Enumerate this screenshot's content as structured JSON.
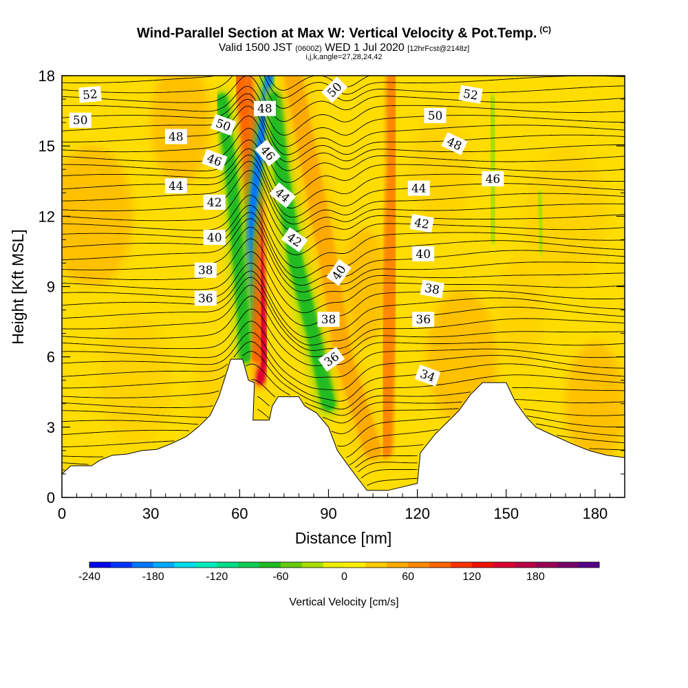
{
  "title": {
    "main": "Wind-Parallel Section at Max W: Vertical Velocity & Pot.Temp.",
    "copyright": "(C)",
    "valid_prefix": "Valid 1500 JST",
    "valid_utc": "(0600Z)",
    "valid_date": "WED 1 Jul 2020",
    "forecast": "[12hrFcst@2148z]",
    "indices": "i,j,k,angle=27,28,24,42"
  },
  "chart_data": {
    "type": "heatmap",
    "xlabel": "Distance [nm]",
    "ylabel": "Height [Kft MSL]",
    "xlim": [
      0,
      190
    ],
    "ylim": [
      0,
      18
    ],
    "x_ticks": [
      0,
      30,
      60,
      90,
      120,
      150,
      180
    ],
    "y_ticks": [
      0,
      3,
      6,
      9,
      12,
      15,
      18
    ],
    "colorbar": {
      "label": "Vertical Velocity [cm/s]",
      "range": [
        -240,
        240
      ],
      "tick_values": [
        -240,
        -180,
        -120,
        -60,
        0,
        60,
        120,
        180
      ],
      "colors": [
        "#0000ee",
        "#0033ff",
        "#0077ff",
        "#00aaff",
        "#00ddee",
        "#00eebb",
        "#00dd88",
        "#11cc55",
        "#22bb22",
        "#66cc11",
        "#aadd00",
        "#eeee00",
        "#ffee00",
        "#ffcc00",
        "#ffaa00",
        "#ff8800",
        "#ff6600",
        "#ff3300",
        "#ee1100",
        "#dd0033",
        "#bb0044",
        "#990055",
        "#770066",
        "#550088"
      ]
    },
    "terrain": [
      [
        0,
        1
      ],
      [
        3,
        1.35
      ],
      [
        10,
        1.35
      ],
      [
        13,
        1.6
      ],
      [
        17,
        1.8
      ],
      [
        22,
        1.85
      ],
      [
        27,
        2.0
      ],
      [
        32,
        2.05
      ],
      [
        37,
        2.3
      ],
      [
        42,
        2.6
      ],
      [
        46,
        3.0
      ],
      [
        50,
        3.5
      ],
      [
        53,
        4.3
      ],
      [
        55,
        5.1
      ],
      [
        57,
        5.9
      ],
      [
        61,
        5.9
      ],
      [
        63,
        5.0
      ],
      [
        65,
        4.9
      ],
      [
        64.5,
        3.3
      ],
      [
        70,
        3.3
      ],
      [
        71,
        3.9
      ],
      [
        73,
        4.3
      ],
      [
        80,
        4.3
      ],
      [
        82,
        3.9
      ],
      [
        86,
        3.6
      ],
      [
        90,
        3.0
      ],
      [
        93,
        2.0
      ],
      [
        97,
        1.3
      ],
      [
        103,
        0.3
      ],
      [
        110,
        0.3
      ],
      [
        120,
        0.6
      ],
      [
        121,
        1.9
      ],
      [
        126,
        2.7
      ],
      [
        134,
        3.7
      ],
      [
        138,
        4.4
      ],
      [
        142,
        4.9
      ],
      [
        150,
        4.9
      ],
      [
        153,
        4.1
      ],
      [
        157,
        3.4
      ],
      [
        160,
        3.0
      ],
      [
        165,
        2.7
      ],
      [
        172,
        2.3
      ],
      [
        178,
        2.0
      ],
      [
        184,
        1.8
      ],
      [
        190,
        1.7
      ],
      [
        190,
        0
      ],
      [
        0,
        0
      ]
    ],
    "velocity_features": [
      {
        "name": "updraft-strong",
        "value": 140,
        "path": [
          [
            62,
            18
          ],
          [
            64,
            16
          ],
          [
            66,
            12
          ],
          [
            67,
            9
          ],
          [
            68,
            6
          ],
          [
            67,
            5
          ]
        ],
        "width_nm": 3
      },
      {
        "name": "updraft-moderate",
        "value": 80,
        "path": [
          [
            60,
            18
          ],
          [
            62,
            16
          ],
          [
            64,
            12
          ],
          [
            66,
            9
          ],
          [
            66,
            6
          ]
        ],
        "width_nm": 4
      },
      {
        "name": "downdraft-strong",
        "value": -200,
        "path": [
          [
            70,
            18
          ],
          [
            66,
            14
          ],
          [
            63,
            11
          ],
          [
            62,
            8
          ],
          [
            61,
            6.2
          ]
        ],
        "width_nm": 2.5
      },
      {
        "name": "downdraft-moderate",
        "value": -80,
        "path": [
          [
            54,
            17
          ],
          [
            57,
            14
          ],
          [
            59,
            11
          ],
          [
            61,
            8
          ],
          [
            62,
            6
          ]
        ],
        "width_nm": 4
      },
      {
        "name": "downdraft-lee",
        "value": -70,
        "path": [
          [
            72,
            17
          ],
          [
            74,
            14
          ],
          [
            79,
            10
          ],
          [
            85,
            7
          ],
          [
            90,
            4
          ]
        ],
        "width_nm": 5
      },
      {
        "name": "updraft-lee",
        "value": 50,
        "path": [
          [
            78,
            18
          ],
          [
            84,
            14
          ],
          [
            90,
            10
          ],
          [
            95,
            6
          ],
          [
            105,
            2
          ]
        ],
        "width_nm": 6
      },
      {
        "name": "updraft-valley",
        "value": 60,
        "path": [
          [
            112,
            18
          ],
          [
            112,
            14
          ],
          [
            111,
            10
          ],
          [
            110,
            6
          ],
          [
            109,
            2
          ]
        ],
        "width_nm": 5
      },
      {
        "name": "downdraft-upper",
        "value": -40,
        "path": [
          [
            145,
            17
          ],
          [
            146,
            14
          ],
          [
            146,
            11
          ]
        ],
        "width_nm": 3
      },
      {
        "name": "downdraft-east",
        "value": -30,
        "path": [
          [
            161,
            13
          ],
          [
            162,
            11.5
          ],
          [
            162,
            10.5
          ]
        ],
        "width_nm": 2
      }
    ],
    "theta_labels": [
      {
        "value": "52",
        "x": 9.5,
        "y": 17.2,
        "angle": -5
      },
      {
        "value": "50",
        "x": 6.2,
        "y": 16.1,
        "angle": 0
      },
      {
        "value": "48",
        "x": 38.5,
        "y": 15.4,
        "angle": 0
      },
      {
        "value": "46",
        "x": 51.5,
        "y": 14.4,
        "angle": 20
      },
      {
        "value": "44",
        "x": 38.5,
        "y": 13.3,
        "angle": 0
      },
      {
        "value": "42",
        "x": 51.5,
        "y": 12.6,
        "angle": 0
      },
      {
        "value": "40",
        "x": 51.5,
        "y": 11.1,
        "angle": 0
      },
      {
        "value": "38",
        "x": 48.5,
        "y": 9.7,
        "angle": 0
      },
      {
        "value": "36",
        "x": 48.5,
        "y": 8.5,
        "angle": 0
      },
      {
        "value": "50",
        "x": 54.5,
        "y": 15.9,
        "angle": 20
      },
      {
        "value": "48",
        "x": 68.5,
        "y": 16.6,
        "angle": 0
      },
      {
        "value": "46",
        "x": 69.5,
        "y": 14.7,
        "angle": 50
      },
      {
        "value": "44",
        "x": 74.5,
        "y": 12.9,
        "angle": 40
      },
      {
        "value": "42",
        "x": 78.5,
        "y": 11.0,
        "angle": 35
      },
      {
        "value": "40",
        "x": 93.5,
        "y": 9.6,
        "angle": -55
      },
      {
        "value": "38",
        "x": 90.0,
        "y": 7.6,
        "angle": 0
      },
      {
        "value": "36",
        "x": 91.0,
        "y": 5.9,
        "angle": -35
      },
      {
        "value": "50",
        "x": 92.0,
        "y": 17.4,
        "angle": -45
      },
      {
        "value": "52",
        "x": 138.0,
        "y": 17.2,
        "angle": 10
      },
      {
        "value": "50",
        "x": 126.0,
        "y": 16.3,
        "angle": 0
      },
      {
        "value": "48",
        "x": 132.5,
        "y": 15.1,
        "angle": 25
      },
      {
        "value": "46",
        "x": 145.5,
        "y": 13.6,
        "angle": 0
      },
      {
        "value": "44",
        "x": 120.5,
        "y": 13.2,
        "angle": 0
      },
      {
        "value": "42",
        "x": 121.5,
        "y": 11.7,
        "angle": 10
      },
      {
        "value": "40",
        "x": 122.0,
        "y": 10.4,
        "angle": 0
      },
      {
        "value": "38",
        "x": 125.0,
        "y": 8.9,
        "angle": 10
      },
      {
        "value": "36",
        "x": 122.0,
        "y": 7.6,
        "angle": 0
      },
      {
        "value": "34",
        "x": 123.5,
        "y": 5.2,
        "angle": 20
      }
    ]
  }
}
